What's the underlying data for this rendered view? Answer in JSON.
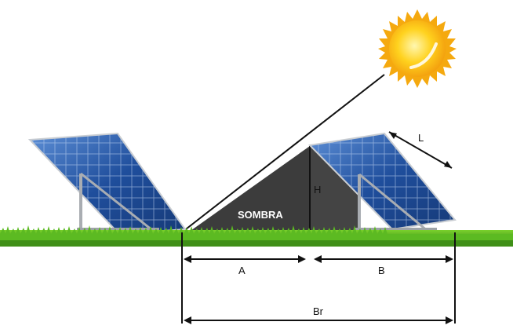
{
  "labels": {
    "sombra": "SOMBRA",
    "h": "H",
    "l": "L",
    "a": "A",
    "b": "B",
    "br": "Br"
  },
  "icons": {
    "sun": "sun-icon",
    "panel": "solar-panel-icon",
    "grass": "grass-icon"
  },
  "colors": {
    "shadow": "#3c3c3c",
    "panel": "#1f4e9c",
    "sun": "#f7c21a",
    "grass": "#4ea81c"
  }
}
